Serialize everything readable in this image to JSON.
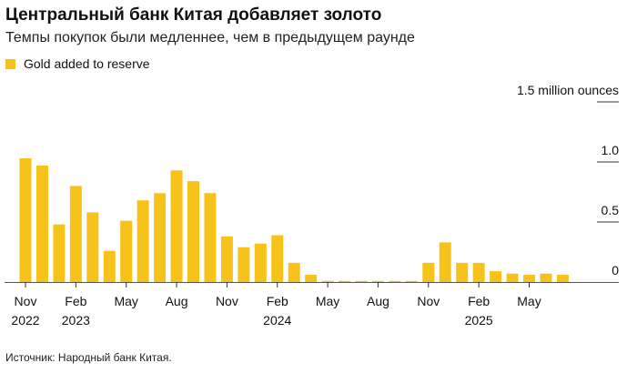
{
  "title": "Центральный банк Китая добавляет золото",
  "subtitle": "Темпы покупок были медленнее, чем в предыдущем раунде",
  "source": "Источник: Народный банк Китая.",
  "chart_data": {
    "type": "bar",
    "series": [
      {
        "name": "Gold added to reserve",
        "color": "#F7C31A",
        "values": [
          1.03,
          0.97,
          0.48,
          0.8,
          0.58,
          0.26,
          0.51,
          0.68,
          0.74,
          0.93,
          0.84,
          0.74,
          0.38,
          0.29,
          0.32,
          0.39,
          0.16,
          0.06,
          0,
          0,
          0,
          0,
          0,
          0,
          0.16,
          0.33,
          0.16,
          0.16,
          0.09,
          0.07,
          0.06,
          0.07,
          0.06
        ]
      }
    ],
    "categories": [
      "2022-11",
      "2022-12",
      "2023-01",
      "2023-02",
      "2023-03",
      "2023-04",
      "2023-05",
      "2023-06",
      "2023-07",
      "2023-08",
      "2023-09",
      "2023-10",
      "2023-11",
      "2023-12",
      "2024-01",
      "2024-02",
      "2024-03",
      "2024-04",
      "2024-05",
      "2024-06",
      "2024-07",
      "2024-08",
      "2024-09",
      "2024-10",
      "2024-11",
      "2024-12",
      "2025-01",
      "2025-02",
      "2025-03",
      "2025-04",
      "2025-05",
      "2025-06",
      "2025-07"
    ],
    "x_tick_labels": [
      {
        "index": 0,
        "month": "Nov",
        "year": "2022"
      },
      {
        "index": 3,
        "month": "Feb",
        "year": "2023"
      },
      {
        "index": 6,
        "month": "May",
        "year": ""
      },
      {
        "index": 9,
        "month": "Aug",
        "year": ""
      },
      {
        "index": 12,
        "month": "Nov",
        "year": ""
      },
      {
        "index": 15,
        "month": "Feb",
        "year": "2024"
      },
      {
        "index": 18,
        "month": "May",
        "year": ""
      },
      {
        "index": 21,
        "month": "Aug",
        "year": ""
      },
      {
        "index": 24,
        "month": "Nov",
        "year": ""
      },
      {
        "index": 27,
        "month": "Feb",
        "year": "2025"
      },
      {
        "index": 30,
        "month": "May",
        "year": ""
      }
    ],
    "y_ticks": [
      {
        "value": 0,
        "label": "0"
      },
      {
        "value": 0.5,
        "label": "0.5"
      },
      {
        "value": 1.0,
        "label": "1.0"
      },
      {
        "value": 1.5,
        "label": "1.5 million ounces"
      }
    ],
    "ylim": [
      0,
      1.5
    ],
    "legend": "top-left",
    "grid": false
  }
}
